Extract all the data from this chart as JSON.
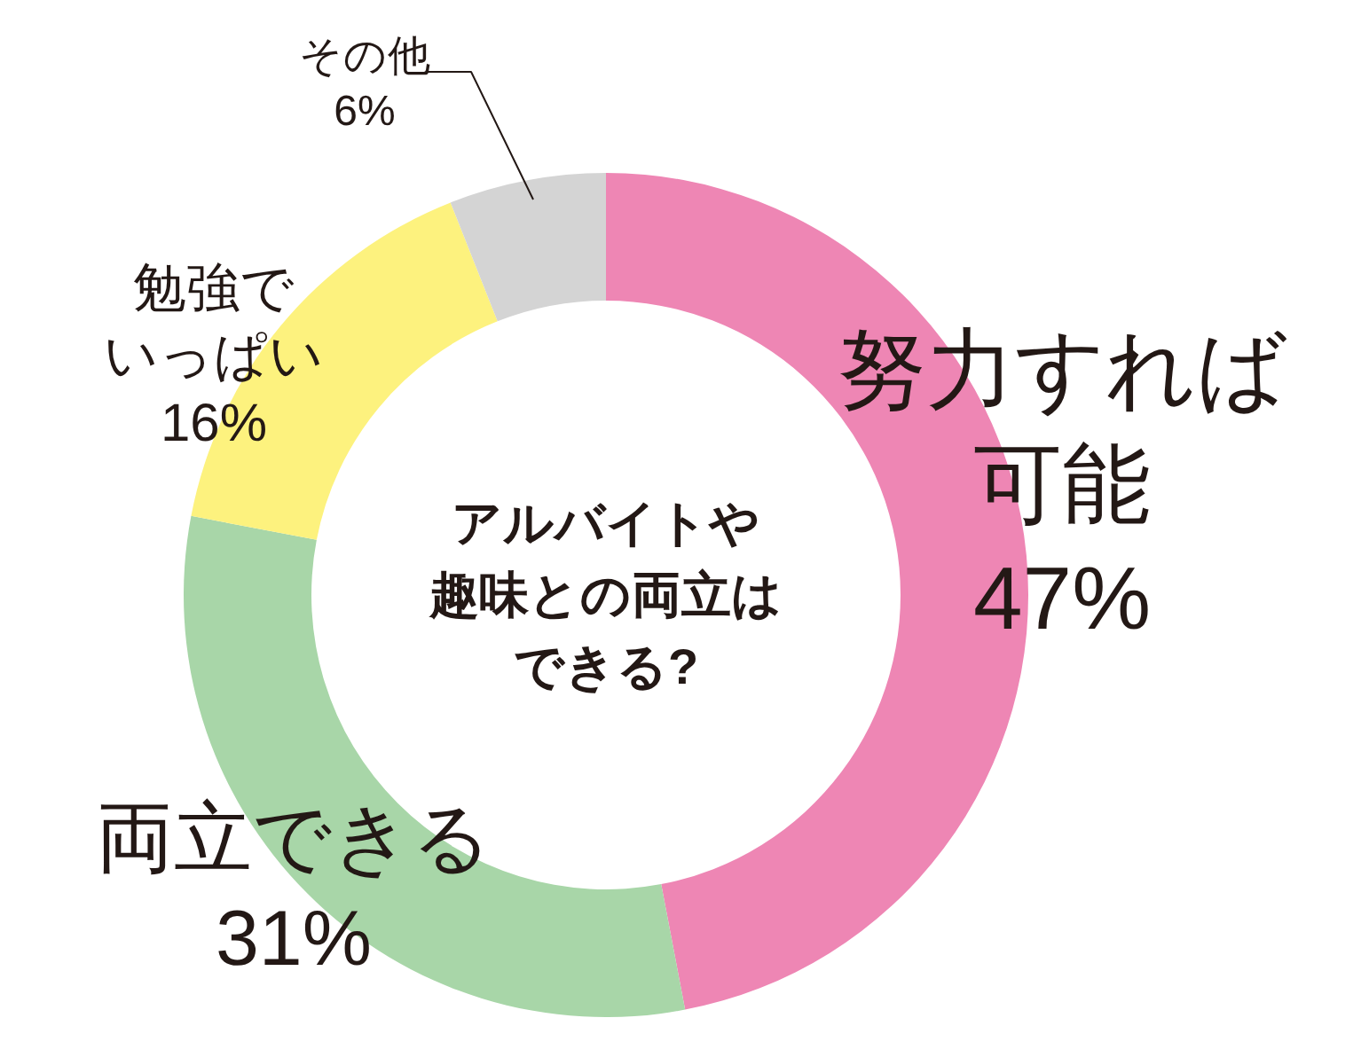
{
  "chart_data": {
    "type": "donut",
    "title": "アルバイトや趣味との両立はできる?",
    "categories": [
      "努力すれば可能",
      "両立できる",
      "勉強でいっぱい",
      "その他"
    ],
    "values": [
      47,
      31,
      16,
      6
    ],
    "value_labels": [
      "47%",
      "31%",
      "16%",
      "6%"
    ],
    "colors": [
      "#ee86b4",
      "#a8d6a8",
      "#fdf27e",
      "#d4d4d4"
    ]
  }
}
